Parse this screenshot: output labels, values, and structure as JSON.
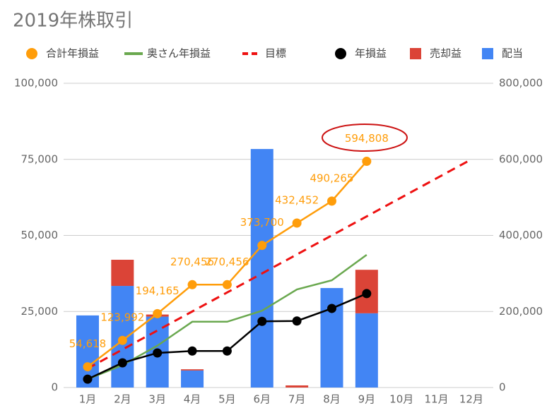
{
  "chart_data": {
    "type": "combo",
    "title": "2019年株取引",
    "categories": [
      "1月",
      "2月",
      "3月",
      "4月",
      "5月",
      "6月",
      "7月",
      "8月",
      "9月",
      "10月",
      "11月",
      "12月"
    ],
    "ylim": [
      0,
      100000
    ],
    "yticks": [
      0,
      {
        "value": 25000,
        "label": "25,000"
      },
      {
        "value": 50000,
        "label": "50,000"
      },
      {
        "value": 75000,
        "label": "75,000"
      },
      {
        "value": 100000,
        "label": "100,000"
      }
    ],
    "y2lim": [
      0,
      800000
    ],
    "y2ticks": [
      0,
      {
        "value": 200000,
        "label": "200,000"
      },
      {
        "value": 400000,
        "label": "400,000"
      },
      {
        "value": 600000,
        "label": "600,000"
      },
      {
        "value": 800000,
        "label": "800,000"
      }
    ],
    "grid": true,
    "legend": "top",
    "series": [
      {
        "name": "合計年損益",
        "type": "line",
        "markers": true,
        "axis": "y2",
        "color": "#ff9d0a",
        "values": [
          54618,
          123992,
          194165,
          270456,
          270456,
          373700,
          432452,
          490265,
          594808,
          null,
          null,
          null
        ],
        "value_labels": [
          "54,618",
          "123,992",
          "194,165",
          "270,456",
          "270,456",
          "373,700",
          "432,452",
          "490,265",
          "594,808",
          null,
          null,
          null
        ]
      },
      {
        "name": "奥さん年損益",
        "type": "line",
        "markers": false,
        "axis": "y2",
        "color": "#6aa84f",
        "values": [
          22000,
          59000,
          110000,
          173000,
          173000,
          202000,
          258000,
          282000,
          349000,
          null,
          null,
          null
        ]
      },
      {
        "name": "目標",
        "type": "line",
        "dashed": true,
        "markers": false,
        "axis": "y2",
        "color": "#ee1111",
        "values": [
          50000,
          100000,
          150000,
          200000,
          250000,
          300000,
          350000,
          400000,
          450000,
          500000,
          550000,
          600000
        ]
      },
      {
        "name": "年損益",
        "type": "line",
        "markers": true,
        "axis": "y2",
        "color": "#000000",
        "values": [
          22000,
          65000,
          91000,
          96000,
          96000,
          174000,
          175000,
          208000,
          247000,
          null,
          null,
          null
        ]
      },
      {
        "name": "売却益",
        "type": "bar",
        "stack": 1,
        "color": "#db4437",
        "values": [
          null,
          8600,
          700,
          400,
          null,
          null,
          700,
          null,
          14300,
          null,
          null,
          null
        ]
      },
      {
        "name": "配当",
        "type": "bar",
        "stack": 0,
        "color": "#4285f4",
        "values": [
          23700,
          33400,
          23300,
          5600,
          null,
          78400,
          null,
          32700,
          24400,
          null,
          null,
          null
        ]
      }
    ]
  }
}
